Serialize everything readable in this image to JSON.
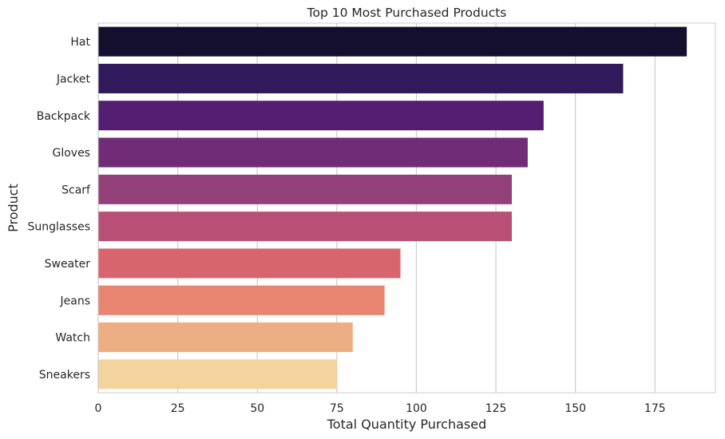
{
  "chart_data": {
    "type": "bar",
    "orientation": "horizontal",
    "title": "Top 10 Most Purchased Products",
    "xlabel": "Total Quantity Purchased",
    "ylabel": "Product",
    "categories": [
      "Hat",
      "Jacket",
      "Backpack",
      "Gloves",
      "Scarf",
      "Sunglasses",
      "Sweater",
      "Jeans",
      "Watch",
      "Sneakers"
    ],
    "values": [
      185,
      165,
      140,
      135,
      130,
      130,
      95,
      90,
      80,
      75
    ],
    "xlim": [
      0,
      194
    ],
    "xticks": [
      0,
      25,
      50,
      75,
      100,
      125,
      150,
      175
    ],
    "grid": true,
    "legend": "none",
    "colors": [
      "#140f2e",
      "#311a5c",
      "#531e71",
      "#712c78",
      "#923f7a",
      "#b74f76",
      "#d8646e",
      "#e78570",
      "#eeae83",
      "#f3d49e"
    ],
    "grid_color": "#cccccc",
    "spine_color": "#cccccc",
    "text_color": "#262626"
  }
}
